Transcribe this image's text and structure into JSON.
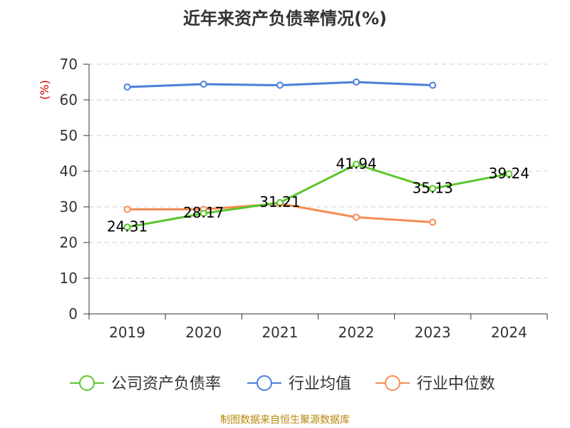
{
  "title": "近年来资产负债率情况(%)",
  "source": "制图数据来自恒生聚源数据库",
  "chart_data": {
    "type": "line",
    "title": "近年来资产负债率情况(%)",
    "ylabel": "(%)",
    "xlabel": "",
    "categories": [
      "2019",
      "2020",
      "2021",
      "2022",
      "2023",
      "2024"
    ],
    "ylim": [
      0,
      70
    ],
    "yticks": [
      0,
      10,
      20,
      30,
      40,
      50,
      60,
      70
    ],
    "grid": true,
    "legend_position": "bottom",
    "series": [
      {
        "name": "公司资产负债率",
        "color": "#5cc62c",
        "values": [
          24.31,
          28.17,
          31.21,
          41.94,
          35.13,
          39.24
        ],
        "labels": [
          "24.31",
          "28.17",
          "31.21",
          "41.94",
          "35.13",
          "39.24"
        ],
        "show_labels": true
      },
      {
        "name": "行业均值",
        "color": "#4a7fdc",
        "values": [
          63.6,
          64.4,
          64.1,
          65.0,
          64.1,
          null
        ],
        "show_labels": false
      },
      {
        "name": "行业中位数",
        "color": "#f58c55",
        "values": [
          29.3,
          29.3,
          30.9,
          27.1,
          25.7,
          null
        ],
        "show_labels": false
      }
    ]
  }
}
